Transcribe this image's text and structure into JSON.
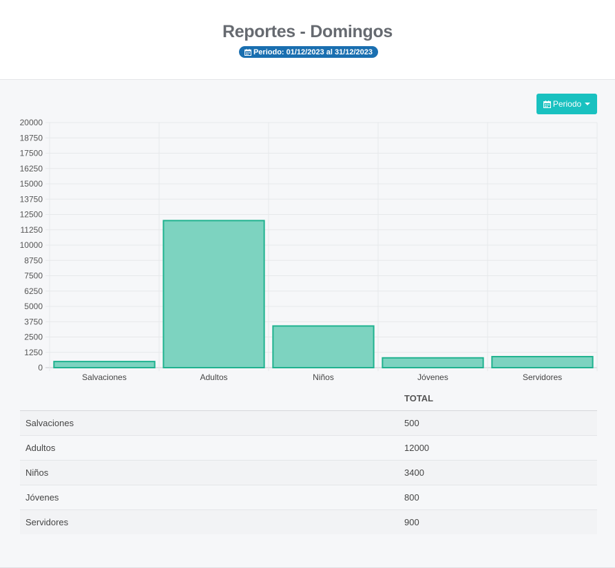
{
  "header": {
    "title": "Reportes - Domingos",
    "period_badge": "Periodo: 01/12/2023 al 31/12/2023",
    "period_icon": "calendar-icon"
  },
  "toolbar": {
    "period_button_label": "Periodo",
    "period_button_icon": "calendar-icon",
    "accent_color": "#19c1c0"
  },
  "chart_data": {
    "type": "bar",
    "categories": [
      "Salvaciones",
      "Adultos",
      "Niños",
      "Jóvenes",
      "Servidores"
    ],
    "values": [
      500,
      12000,
      3400,
      800,
      900
    ],
    "ylim": [
      0,
      20000
    ],
    "yticks": [
      0,
      1250,
      2500,
      3750,
      5000,
      6250,
      7500,
      8750,
      10000,
      11250,
      12500,
      13750,
      15000,
      16250,
      17500,
      18750,
      20000
    ],
    "grid": true,
    "bar_fill": "#7dd3c0",
    "bar_stroke": "#1fb28f"
  },
  "table": {
    "columns": [
      "",
      "TOTAL"
    ],
    "rows": [
      [
        "Salvaciones",
        "500"
      ],
      [
        "Adultos",
        "12000"
      ],
      [
        "Niños",
        "3400"
      ],
      [
        "Jóvenes",
        "800"
      ],
      [
        "Servidores",
        "900"
      ]
    ]
  }
}
